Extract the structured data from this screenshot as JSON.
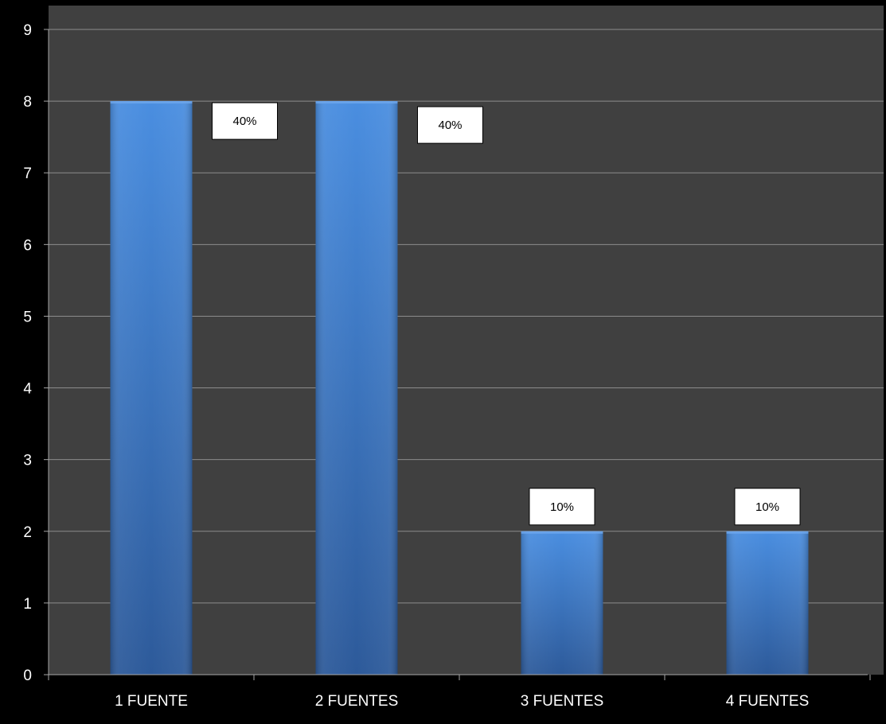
{
  "chart_data": {
    "type": "bar",
    "categories": [
      "1 FUENTE",
      "2 FUENTES",
      "3 FUENTES",
      "4 FUENTES"
    ],
    "values": [
      8,
      8,
      2,
      2
    ],
    "data_labels": [
      "40%",
      "40%",
      "10%",
      "10%"
    ],
    "title": "",
    "xlabel": "",
    "ylabel": "",
    "ylim": [
      0,
      9
    ],
    "yticks": [
      "0",
      "1",
      "2",
      "3",
      "4",
      "5",
      "6",
      "7",
      "8",
      "9"
    ],
    "grid": true,
    "legend": "none"
  },
  "colors": {
    "page_background": "#000000",
    "plot_background": "#404040",
    "gridline": "#8c8c8c",
    "axis": "#a6a6a6",
    "bar_top": "#4a8ee0",
    "bar_bottom": "#2d5a9a",
    "label_box_fill": "#ffffff",
    "label_box_border": "#000000",
    "tick_text": "#ffffff"
  }
}
